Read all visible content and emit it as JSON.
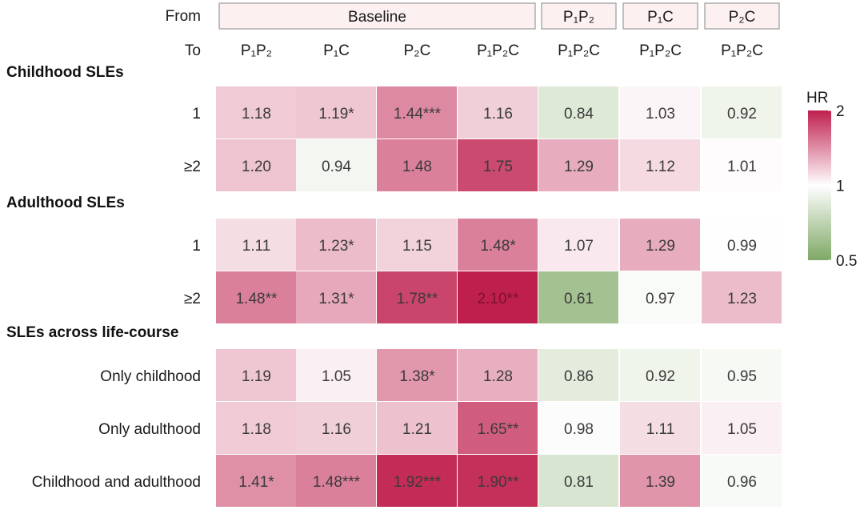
{
  "chart_data": {
    "type": "heatmap",
    "row_header_from": "From",
    "row_header_to": "To",
    "from_groups": [
      {
        "label": "Baseline",
        "span": 4
      },
      {
        "label": "P₁P₂",
        "span": 1
      },
      {
        "label": "P₁C",
        "span": 1
      },
      {
        "label": "P₂C",
        "span": 1
      }
    ],
    "columns": [
      "P₁P₂",
      "P₁C",
      "P₂C",
      "P₁P₂C",
      "P₁P₂C",
      "P₁P₂C",
      "P₁P₂C"
    ],
    "sections": [
      {
        "title": "Childhood SLEs",
        "rows": [
          {
            "label": "1",
            "values": [
              1.18,
              1.19,
              1.44,
              1.16,
              0.84,
              1.03,
              0.92
            ],
            "labels": [
              "1.18",
              "1.19*",
              "1.44***",
              "1.16",
              "0.84",
              "1.03",
              "0.92"
            ]
          },
          {
            "label": "≥2",
            "values": [
              1.2,
              0.94,
              1.48,
              1.75,
              1.29,
              1.12,
              1.01
            ],
            "labels": [
              "1.20",
              "0.94",
              "1.48",
              "1.75",
              "1.29",
              "1.12",
              "1.01"
            ]
          }
        ]
      },
      {
        "title": "Adulthood SLEs",
        "rows": [
          {
            "label": "1",
            "values": [
              1.11,
              1.23,
              1.15,
              1.48,
              1.07,
              1.29,
              0.99
            ],
            "labels": [
              "1.11",
              "1.23*",
              "1.15",
              "1.48*",
              "1.07",
              "1.29",
              "0.99"
            ]
          },
          {
            "label": "≥2",
            "values": [
              1.48,
              1.31,
              1.78,
              2.1,
              0.61,
              0.97,
              1.23
            ],
            "labels": [
              "1.48**",
              "1.31*",
              "1.78**",
              "2.10**",
              "0.61",
              "0.97",
              "1.23"
            ]
          }
        ]
      },
      {
        "title": "SLEs across life-course",
        "rows": [
          {
            "label": "Only childhood",
            "values": [
              1.19,
              1.05,
              1.38,
              1.28,
              0.86,
              0.92,
              0.95
            ],
            "labels": [
              "1.19",
              "1.05",
              "1.38*",
              "1.28",
              "0.86",
              "0.92",
              "0.95"
            ]
          },
          {
            "label": "Only adulthood",
            "values": [
              1.18,
              1.16,
              1.21,
              1.65,
              0.98,
              1.11,
              1.05
            ],
            "labels": [
              "1.18",
              "1.16",
              "1.21",
              "1.65**",
              "0.98",
              "1.11",
              "1.05"
            ]
          },
          {
            "label": "Childhood and adulthood",
            "values": [
              1.41,
              1.48,
              1.92,
              1.9,
              0.81,
              1.39,
              0.96
            ],
            "labels": [
              "1.41*",
              "1.48***",
              "1.92***",
              "1.90**",
              "0.81",
              "1.39",
              "0.96"
            ]
          }
        ]
      }
    ],
    "legend": {
      "title": "HR",
      "min": 0.5,
      "mid": 1,
      "max": 2,
      "ticks": [
        {
          "label": "2",
          "value": 2
        },
        {
          "label": "1",
          "value": 1
        },
        {
          "label": "0.5",
          "value": 0.5
        }
      ],
      "position": "right"
    },
    "colors": {
      "low": "#7fa865",
      "mid": "#ffffff",
      "high": "#bf1f4d",
      "header_fill": "#fdf0f1",
      "header_stroke": "#a0a0a0"
    }
  }
}
